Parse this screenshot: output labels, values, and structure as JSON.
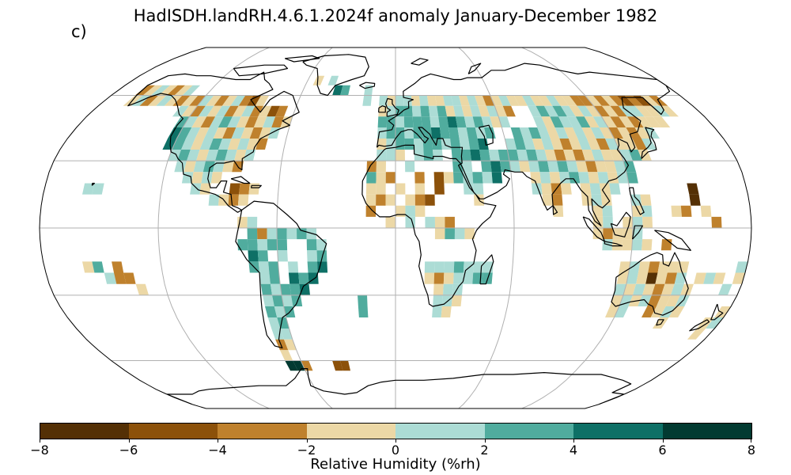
{
  "title": "HadISDH.landRH.4.6.1.2024f anomaly January-December 1982",
  "panel_label": "c)",
  "colorbar": {
    "label": "Relative Humidity (%rh)",
    "ticks": [
      "−8",
      "−6",
      "−4",
      "−2",
      "0",
      "2",
      "4",
      "6",
      "8"
    ],
    "bins": [
      {
        "range": [
          -8,
          -6
        ],
        "color": "#543005"
      },
      {
        "range": [
          -6,
          -4
        ],
        "color": "#8c510a"
      },
      {
        "range": [
          -4,
          -2
        ],
        "color": "#bf812d"
      },
      {
        "range": [
          -2,
          0
        ],
        "color": "#ecd8a6"
      },
      {
        "range": [
          0,
          2
        ],
        "color": "#acdcd5"
      },
      {
        "range": [
          2,
          4
        ],
        "color": "#50ac9e"
      },
      {
        "range": [
          4,
          6
        ],
        "color": "#0e7066"
      },
      {
        "range": [
          6,
          8
        ],
        "color": "#023a31"
      }
    ]
  },
  "map": {
    "projection": "Robinson",
    "gridlines": true
  }
}
